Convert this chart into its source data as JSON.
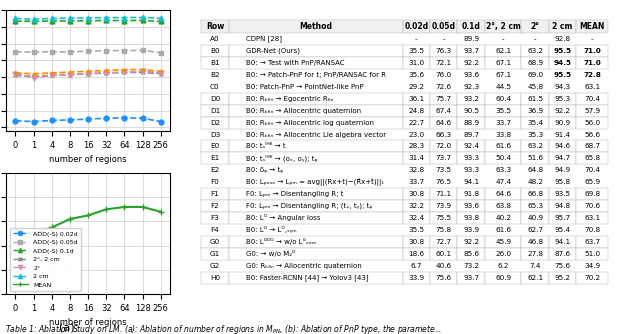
{
  "x_ticks": [
    0,
    1,
    4,
    8,
    16,
    32,
    64,
    128,
    256
  ],
  "x_vals": [
    0,
    1,
    2,
    3,
    4,
    5,
    6,
    7,
    8
  ],
  "lines_top": {
    "ADD-S 0.02d": {
      "values": [
        34.0,
        33.5,
        34.2,
        34.5,
        35.0,
        35.5,
        35.8,
        35.5,
        33.5
      ],
      "color": "#1e90ff",
      "style": "--",
      "marker": "o"
    },
    "ADD-S 0.05d": {
      "values": [
        75.0,
        75.0,
        75.2,
        75.0,
        75.5,
        75.8,
        75.8,
        76.0,
        74.5
      ],
      "color": "#aaaaaa",
      "style": "--",
      "marker": "s"
    },
    "ADD-S 0.1d": {
      "values": [
        93.5,
        93.2,
        93.5,
        93.5,
        93.6,
        93.8,
        93.7,
        93.8,
        93.2
      ],
      "color": "#228B22",
      "style": "--",
      "marker": "^"
    },
    "2deg 2cm": {
      "values": [
        61.0,
        60.5,
        61.0,
        61.5,
        62.0,
        62.5,
        62.8,
        62.8,
        62.0
      ],
      "color": "#888888",
      "style": "--",
      "marker": "x"
    },
    "2deg": {
      "values": [
        62.0,
        59.5,
        61.0,
        61.5,
        62.0,
        62.5,
        63.0,
        63.5,
        62.5
      ],
      "color": "#ff69b4",
      "style": "--",
      "marker": "v"
    },
    "2cm": {
      "values": [
        95.0,
        94.5,
        95.0,
        95.2,
        95.3,
        95.5,
        95.5,
        95.6,
        95.0
      ],
      "color": "#00bcd4",
      "style": "--",
      "marker": "^"
    },
    "MEAN": {
      "values": [
        62.5,
        62.0,
        62.5,
        63.0,
        63.5,
        64.0,
        64.5,
        64.5,
        63.5
      ],
      "color": "#ff8c00",
      "style": "--",
      "marker": "+"
    }
  },
  "lines_bottom": {
    "ADD-S 0.02d": {
      "values": [
        69.2,
        69.0,
        69.5,
        70.2,
        70.5,
        71.0,
        71.2,
        71.2,
        70.8
      ],
      "color": "#1e90ff",
      "style": "--",
      "marker": "o"
    },
    "ADD-S 0.05d": {
      "values": [
        69.2,
        69.0,
        69.5,
        70.2,
        70.5,
        71.0,
        71.2,
        71.2,
        70.8
      ],
      "color": "#aaaaaa",
      "style": "--",
      "marker": "s"
    },
    "ADD-S 0.1d": {
      "values": [
        69.2,
        69.0,
        69.5,
        70.2,
        70.5,
        71.0,
        71.2,
        71.2,
        70.8
      ],
      "color": "#228B22",
      "style": "-",
      "marker": "^"
    },
    "2deg 2cm": {
      "values": [
        69.2,
        69.0,
        69.5,
        70.2,
        70.5,
        71.0,
        71.2,
        71.2,
        70.8
      ],
      "color": "#888888",
      "style": "--",
      "marker": "x"
    },
    "2deg": {
      "values": [
        69.2,
        69.0,
        69.5,
        70.2,
        70.5,
        71.0,
        71.2,
        71.2,
        70.8
      ],
      "color": "#ff69b4",
      "style": "--",
      "marker": "v"
    },
    "2cm": {
      "values": [
        69.2,
        69.0,
        69.5,
        70.2,
        70.5,
        71.0,
        71.2,
        71.2,
        70.8
      ],
      "color": "#00bcd4",
      "style": "--",
      "marker": "^"
    },
    "MEAN": {
      "values": [
        69.2,
        69.0,
        69.5,
        70.2,
        70.5,
        71.0,
        71.2,
        71.2,
        70.8
      ],
      "color": "#228B22",
      "style": "-",
      "marker": "+"
    }
  },
  "table_header": [
    "Row",
    "Method",
    "0.02d",
    "0.05d",
    "0.1d",
    "2°, 2 cm",
    "2°",
    "2 cm",
    "MEAN"
  ],
  "table_data": [
    [
      "A0",
      "CDPN [28]",
      "-",
      "-",
      "89.9",
      "-",
      "-",
      "92.8",
      "-"
    ],
    [
      "B0",
      "GDR-Net (Ours)",
      "35.5",
      "76.3",
      "93.7",
      "62.1",
      "63.2",
      "95.5",
      "71.0"
    ],
    [
      "B1",
      "B0: → Test with PnP/RANSAC",
      "31.0",
      "72.1",
      "92.2",
      "67.1",
      "68.9",
      "94.5",
      "71.0"
    ],
    [
      "B2",
      "B0: → Patch-PnP for t; PnP/RANSAC for R",
      "35.6",
      "76.0",
      "93.6",
      "67.1",
      "69.0",
      "95.5",
      "72.8"
    ],
    [
      "C0",
      "B0: Patch-PnP → PointNet-like PnP",
      "29.2",
      "72.6",
      "92.3",
      "44.5",
      "45.8",
      "94.3",
      "63.1"
    ],
    [
      "D0",
      "B0: Rₖ₆ₙ → Egocentric R₆ₙ",
      "36.1",
      "75.7",
      "93.2",
      "60.4",
      "61.5",
      "95.3",
      "70.4"
    ],
    [
      "D1",
      "B0: Rₖ₆ₙ → Allocentric quaternion",
      "24.8",
      "67.4",
      "90.5",
      "35.5",
      "36.9",
      "92.2",
      "57.9"
    ],
    [
      "D2",
      "B0: Rₖ₆ₙ → Allocentric log quaternion",
      "22.7",
      "64.6",
      "88.9",
      "33.7",
      "35.4",
      "90.9",
      "56.0"
    ],
    [
      "D3",
      "B0: Rₖ₆ₙ → Allocentric Lie algebra vector",
      "23.0",
      "66.3",
      "89.7",
      "33.8",
      "35.3",
      "91.4",
      "56.6"
    ],
    [
      "E0",
      "B0: tₛᴵᴴᴱ → t",
      "28.3",
      "72.0",
      "92.4",
      "61.6",
      "63.2",
      "94.6",
      "68.7"
    ],
    [
      "E1",
      "B0: tₛᴵᴴᴱ → (oₓ, oᵧ); tᵩ",
      "31.4",
      "73.7",
      "93.3",
      "50.4",
      "51.6",
      "94.7",
      "65.8"
    ],
    [
      "E2",
      "B0: δᵩ → tᵩ",
      "32.8",
      "73.5",
      "93.3",
      "63.3",
      "64.8",
      "94.9",
      "70.4"
    ],
    [
      "F0",
      "B0: Lₚₒₛₑ → Lₚₘ = avg||(Rx+t)−(R̂x+t̂)||₁",
      "33.7",
      "76.5",
      "94.1",
      "47.4",
      "48.2",
      "95.8",
      "65.9"
    ],
    [
      "F1",
      "F0: Lₚₘ → Disentangling R; t",
      "30.8",
      "71.1",
      "91.8",
      "64.6",
      "66.8",
      "93.5",
      "69.8"
    ],
    [
      "F2",
      "F0: Lₚₘ → Disentangling R; (tₓ, tᵧ); tᵩ",
      "32.2",
      "73.9",
      "93.6",
      "63.8",
      "65.3",
      "94.8",
      "70.6"
    ],
    [
      "F3",
      "B0: Lᴼ → Angular loss",
      "32.4",
      "75.5",
      "93.8",
      "40.2",
      "40.9",
      "95.7",
      "63.1"
    ],
    [
      "F4",
      "B0: Lᴼ → Lᴼ,ₛᵧₘ",
      "35.5",
      "75.8",
      "93.9",
      "61.6",
      "62.7",
      "95.4",
      "70.8"
    ],
    [
      "G0",
      "B0: Lᴳᴰᴼ → w/o Lᴳₑₒₘ",
      "30.8",
      "72.7",
      "92.2",
      "45.9",
      "46.8",
      "94.1",
      "63.7"
    ],
    [
      "G1",
      "G0: → w/o M₂ᴰ",
      "18.6",
      "60.1",
      "85.6",
      "26.0",
      "27.8",
      "87.6",
      "51.0"
    ],
    [
      "G2",
      "G0: Rₖ₆ₙ → Allocentric quaternion",
      "6.7",
      "40.6",
      "73.2",
      "6.2",
      "7.4",
      "75.6",
      "34.9"
    ],
    [
      "H0",
      "B0: Faster-RCNN [44] → Yolov3 [43]",
      "33.9",
      "75.6",
      "93.7",
      "60.9",
      "62.1",
      "95.2",
      "70.2"
    ]
  ],
  "bold_rows": [
    "B0",
    "B1",
    "B2"
  ],
  "separator_rows": [
    "A0",
    "B2",
    "C0",
    "D3",
    "E2",
    "F0",
    "F4",
    "G2"
  ],
  "bg_color": "#ffffff",
  "grid_color": "#cccccc",
  "label_bottom": "(a)",
  "caption": "Table 1: Ablation Study on LM. (a): Ablation of number of regions in Mₚₙ, (b): Ablation of PnP type, the paramete..."
}
